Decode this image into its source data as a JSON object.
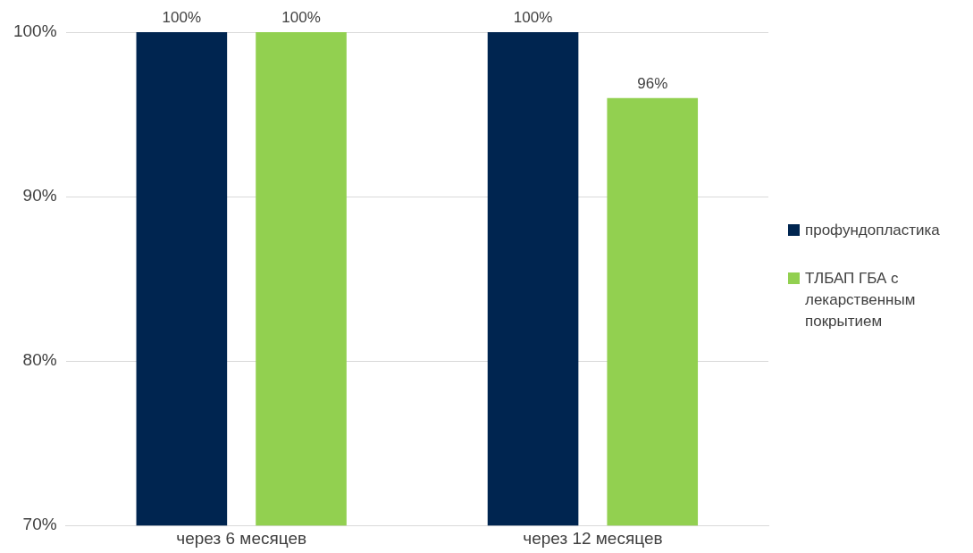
{
  "chart_data": {
    "type": "bar",
    "categories": [
      "через 6 месяцев",
      "через 12 месяцев"
    ],
    "series": [
      {
        "name": "профундопластика",
        "color": "#002550",
        "values": [
          100,
          100
        ],
        "value_labels": [
          "100%",
          "100%"
        ]
      },
      {
        "name": "ТЛБАП ГБА с лекарственным покрытием",
        "color": "#92d050",
        "values": [
          100,
          96
        ],
        "value_labels": [
          "100%",
          "96%"
        ]
      }
    ],
    "ylim": [
      70,
      100
    ],
    "yticks": [
      {
        "value": 70,
        "label": "70%"
      },
      {
        "value": 80,
        "label": "80%"
      },
      {
        "value": 90,
        "label": "90%"
      },
      {
        "value": 100,
        "label": "100%"
      }
    ],
    "grid": "y",
    "legend": "right"
  }
}
